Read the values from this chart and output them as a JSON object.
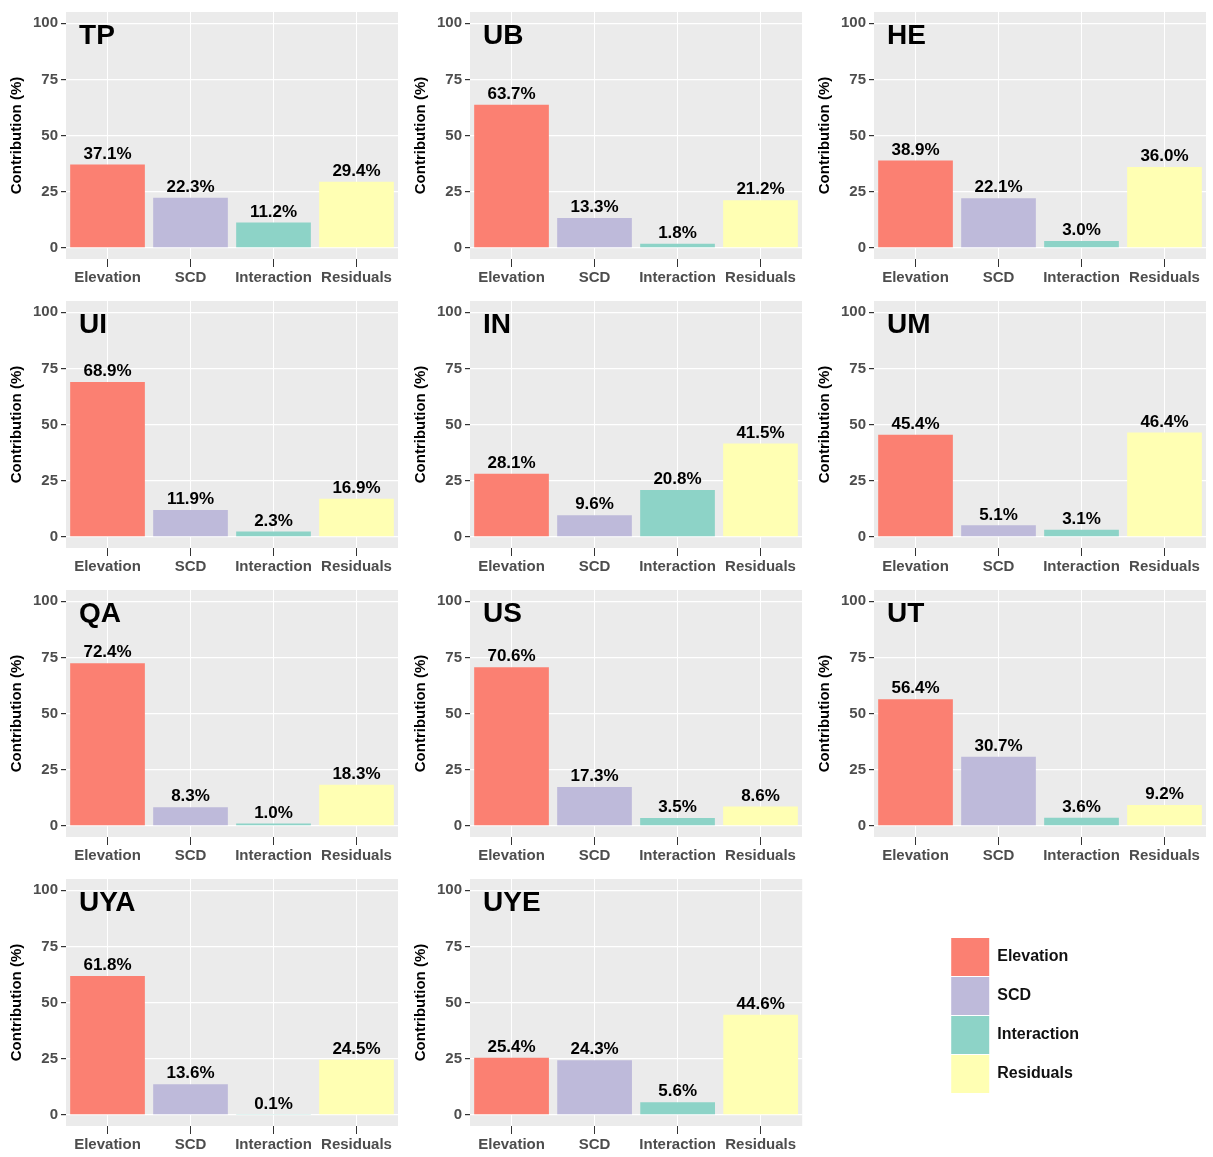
{
  "chart_data": [
    {
      "type": "bar",
      "title": "TP",
      "ylabel": "Contribution (%)",
      "categories": [
        "Elevation",
        "SCD",
        "Interaction",
        "Residuals"
      ],
      "values": [
        37.1,
        22.3,
        11.2,
        29.4
      ],
      "colors": [
        "#fb8072",
        "#bebada",
        "#8dd3c7",
        "#ffffb3"
      ],
      "value_labels": [
        "37.1%",
        "22.3%",
        "11.2%",
        "29.4%"
      ],
      "ylim": [
        -5,
        105
      ],
      "yticks": [
        0,
        25,
        50,
        75,
        100
      ],
      "grid": true
    },
    {
      "type": "bar",
      "title": "UB",
      "ylabel": "Contribution (%)",
      "categories": [
        "Elevation",
        "SCD",
        "Interaction",
        "Residuals"
      ],
      "values": [
        63.7,
        13.3,
        1.8,
        21.2
      ],
      "colors": [
        "#fb8072",
        "#bebada",
        "#8dd3c7",
        "#ffffb3"
      ],
      "value_labels": [
        "63.7%",
        "13.3%",
        "1.8%",
        "21.2%"
      ],
      "ylim": [
        -5,
        105
      ],
      "yticks": [
        0,
        25,
        50,
        75,
        100
      ],
      "grid": true
    },
    {
      "type": "bar",
      "title": "HE",
      "ylabel": "Contribution (%)",
      "categories": [
        "Elevation",
        "SCD",
        "Interaction",
        "Residuals"
      ],
      "values": [
        38.9,
        22.1,
        3.0,
        36.0
      ],
      "colors": [
        "#fb8072",
        "#bebada",
        "#8dd3c7",
        "#ffffb3"
      ],
      "value_labels": [
        "38.9%",
        "22.1%",
        "3.0%",
        "36.0%"
      ],
      "ylim": [
        -5,
        105
      ],
      "yticks": [
        0,
        25,
        50,
        75,
        100
      ],
      "grid": true
    },
    {
      "type": "bar",
      "title": "UI",
      "ylabel": "Contribution (%)",
      "categories": [
        "Elevation",
        "SCD",
        "Interaction",
        "Residuals"
      ],
      "values": [
        68.9,
        11.9,
        2.3,
        16.9
      ],
      "colors": [
        "#fb8072",
        "#bebada",
        "#8dd3c7",
        "#ffffb3"
      ],
      "value_labels": [
        "68.9%",
        "11.9%",
        "2.3%",
        "16.9%"
      ],
      "ylim": [
        -5,
        105
      ],
      "yticks": [
        0,
        25,
        50,
        75,
        100
      ],
      "grid": true
    },
    {
      "type": "bar",
      "title": "IN",
      "ylabel": "Contribution (%)",
      "categories": [
        "Elevation",
        "SCD",
        "Interaction",
        "Residuals"
      ],
      "values": [
        28.1,
        9.6,
        20.8,
        41.5
      ],
      "colors": [
        "#fb8072",
        "#bebada",
        "#8dd3c7",
        "#ffffb3"
      ],
      "value_labels": [
        "28.1%",
        "9.6%",
        "20.8%",
        "41.5%"
      ],
      "ylim": [
        -5,
        105
      ],
      "yticks": [
        0,
        25,
        50,
        75,
        100
      ],
      "grid": true
    },
    {
      "type": "bar",
      "title": "UM",
      "ylabel": "Contribution (%)",
      "categories": [
        "Elevation",
        "SCD",
        "Interaction",
        "Residuals"
      ],
      "values": [
        45.4,
        5.1,
        3.1,
        46.4
      ],
      "colors": [
        "#fb8072",
        "#bebada",
        "#8dd3c7",
        "#ffffb3"
      ],
      "value_labels": [
        "45.4%",
        "5.1%",
        "3.1%",
        "46.4%"
      ],
      "ylim": [
        -5,
        105
      ],
      "yticks": [
        0,
        25,
        50,
        75,
        100
      ],
      "grid": true
    },
    {
      "type": "bar",
      "title": "QA",
      "ylabel": "Contribution (%)",
      "categories": [
        "Elevation",
        "SCD",
        "Interaction",
        "Residuals"
      ],
      "values": [
        72.4,
        8.3,
        1.0,
        18.3
      ],
      "colors": [
        "#fb8072",
        "#bebada",
        "#8dd3c7",
        "#ffffb3"
      ],
      "value_labels": [
        "72.4%",
        "8.3%",
        "1.0%",
        "18.3%"
      ],
      "ylim": [
        -5,
        105
      ],
      "yticks": [
        0,
        25,
        50,
        75,
        100
      ],
      "grid": true
    },
    {
      "type": "bar",
      "title": "US",
      "ylabel": "Contribution (%)",
      "categories": [
        "Elevation",
        "SCD",
        "Interaction",
        "Residuals"
      ],
      "values": [
        70.6,
        17.3,
        3.5,
        8.6
      ],
      "colors": [
        "#fb8072",
        "#bebada",
        "#8dd3c7",
        "#ffffb3"
      ],
      "value_labels": [
        "70.6%",
        "17.3%",
        "3.5%",
        "8.6%"
      ],
      "ylim": [
        -5,
        105
      ],
      "yticks": [
        0,
        25,
        50,
        75,
        100
      ],
      "grid": true
    },
    {
      "type": "bar",
      "title": "UT",
      "ylabel": "Contribution (%)",
      "categories": [
        "Elevation",
        "SCD",
        "Interaction",
        "Residuals"
      ],
      "values": [
        56.4,
        30.7,
        3.6,
        9.2
      ],
      "colors": [
        "#fb8072",
        "#bebada",
        "#8dd3c7",
        "#ffffb3"
      ],
      "value_labels": [
        "56.4%",
        "30.7%",
        "3.6%",
        "9.2%"
      ],
      "ylim": [
        -5,
        105
      ],
      "yticks": [
        0,
        25,
        50,
        75,
        100
      ],
      "grid": true
    },
    {
      "type": "bar",
      "title": "UYA",
      "ylabel": "Contribution (%)",
      "categories": [
        "Elevation",
        "SCD",
        "Interaction",
        "Residuals"
      ],
      "values": [
        61.8,
        13.6,
        0.1,
        24.5
      ],
      "colors": [
        "#fb8072",
        "#bebada",
        "#8dd3c7",
        "#ffffb3"
      ],
      "value_labels": [
        "61.8%",
        "13.6%",
        "0.1%",
        "24.5%"
      ],
      "ylim": [
        -5,
        105
      ],
      "yticks": [
        0,
        25,
        50,
        75,
        100
      ],
      "grid": true
    },
    {
      "type": "bar",
      "title": "UYE",
      "ylabel": "Contribution (%)",
      "categories": [
        "Elevation",
        "SCD",
        "Interaction",
        "Residuals"
      ],
      "series": [
        {
          "name": "Elevation",
          "color": "#fb8072",
          "values": [
            25.4,
            null,
            null,
            null
          ],
          "value_labels": [
            "25.4%",
            null,
            null,
            null
          ]
        },
        {
          "name": "SCD",
          "color": "#bebada",
          "values": [
            null,
            24.3,
            null,
            null
          ],
          "value_labels": [
            null,
            "24.3%",
            null,
            null
          ]
        },
        {
          "name": "Interaction",
          "color": "#8dd3c7",
          "values": [
            null,
            null,
            5.6,
            null
          ],
          "value_labels": [
            null,
            null,
            "5.6%",
            null
          ]
        },
        {
          "name": "Residuals",
          "color": "#ffffb3",
          "values": [
            null,
            null,
            null,
            44.6
          ],
          "value_labels": [
            null,
            null,
            null,
            "44.6%"
          ]
        }
      ],
      "ylim": [
        -5,
        105
      ],
      "yticks": [
        0,
        25,
        50,
        75,
        100
      ],
      "grid": true,
      "legend": "right"
    }
  ]
}
